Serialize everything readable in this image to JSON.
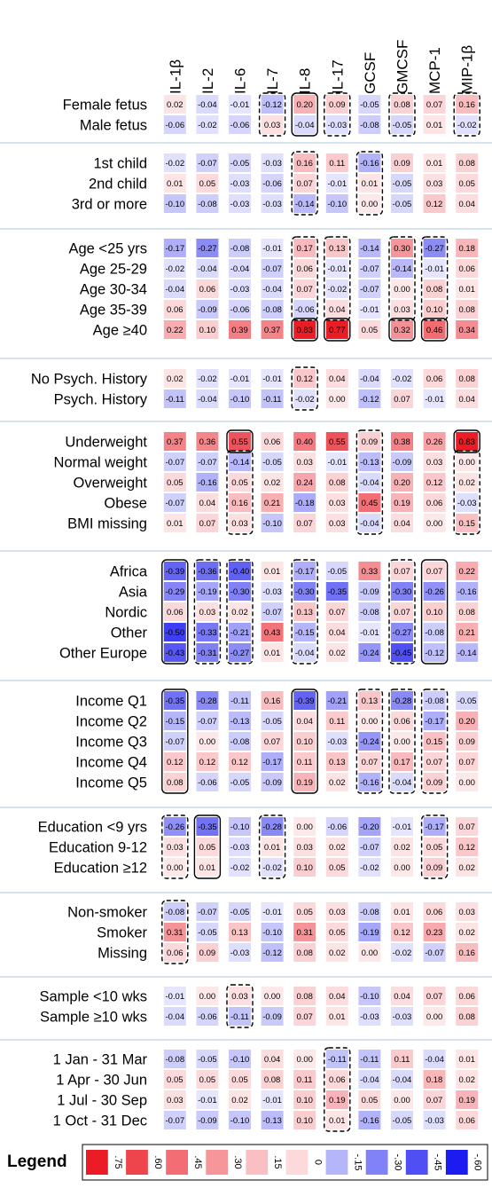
{
  "chart_data": {
    "type": "heatmap",
    "columns": [
      "IL-1β",
      "IL-2",
      "IL-6",
      "IL-7",
      "IL-8",
      "IL-17",
      "GCSF",
      "GMCSF",
      "MCP-1",
      "MIP-1β"
    ],
    "groups": [
      {
        "rows": [
          {
            "label": "Female fetus",
            "values": [
              "0.02",
              "-0.04",
              "-0.01",
              "-0.12",
              "0.20",
              "0.09",
              "-0.05",
              "0.08",
              "0.07",
              "0.16"
            ]
          },
          {
            "label": "Male fetus",
            "values": [
              "-0.06",
              "-0.02",
              "-0.06",
              "0.03",
              "-0.04",
              "-0.03",
              "-0.08",
              "-0.05",
              "0.01",
              "-0.02"
            ]
          }
        ],
        "dashed_boxes": [
          {
            "col": 3,
            "from": 0,
            "to": 1
          },
          {
            "col": 5,
            "from": 0,
            "to": 1
          },
          {
            "col": 7,
            "from": 0,
            "to": 1
          },
          {
            "col": 9,
            "from": 0,
            "to": 1
          }
        ],
        "solid_boxes": [
          {
            "col": 4,
            "from": 0,
            "to": 1
          }
        ]
      },
      {
        "rows": [
          {
            "label": "1st child",
            "values": [
              "-0.02",
              "-0.07",
              "-0.05",
              "-0.03",
              "0.16",
              "0.11",
              "-0.16",
              "0.09",
              "0.01",
              "0.08"
            ]
          },
          {
            "label": "2nd child",
            "values": [
              "0.01",
              "0.05",
              "-0.03",
              "-0.06",
              "0.07",
              "-0.01",
              "0.01",
              "-0.05",
              "0.03",
              "0.05"
            ]
          },
          {
            "label": "3rd or more",
            "values": [
              "-0.10",
              "-0.08",
              "-0.03",
              "-0.03",
              "-0.14",
              "-0.10",
              "0.00",
              "-0.05",
              "0.12",
              "0.04"
            ]
          }
        ],
        "dashed_boxes": [
          {
            "col": 4,
            "from": 0,
            "to": 2
          },
          {
            "col": 6,
            "from": 0,
            "to": 2
          }
        ],
        "solid_boxes": []
      },
      {
        "rows": [
          {
            "label": "Age <25 yrs",
            "values": [
              "-0.17",
              "-0.27",
              "-0.08",
              "-0.01",
              "0.17",
              "0.13",
              "-0.14",
              "0.30",
              "-0.27",
              "0.18"
            ]
          },
          {
            "label": "Age 25-29",
            "values": [
              "-0.02",
              "-0.04",
              "-0.04",
              "-0.07",
              "0.06",
              "-0.01",
              "-0.07",
              "-0.14",
              "-0.01",
              "0.06"
            ]
          },
          {
            "label": "Age 30-34",
            "values": [
              "-0.04",
              "0.06",
              "-0.03",
              "-0.04",
              "0.07",
              "-0.02",
              "-0.07",
              "0.00",
              "0.08",
              "0.01"
            ]
          },
          {
            "label": "Age 35-39",
            "values": [
              "0.06",
              "-0.09",
              "-0.06",
              "-0.08",
              "-0.06",
              "0.04",
              "-0.01",
              "0.03",
              "0.10",
              "0.08"
            ]
          },
          {
            "label": "Age ≥40",
            "values": [
              "0.22",
              "0.10",
              "0.39",
              "0.37",
              "0.83",
              "0.77",
              "0.05",
              "0.32",
              "0.46",
              "0.34"
            ]
          }
        ],
        "dashed_boxes": [
          {
            "col": 4,
            "from": 0,
            "to": 3
          },
          {
            "col": 5,
            "from": 0,
            "to": 3
          },
          {
            "col": 7,
            "from": 0,
            "to": 3
          },
          {
            "col": 8,
            "from": 0,
            "to": 3
          }
        ],
        "solid_boxes": [
          {
            "col": 4,
            "from": 4,
            "to": 4
          },
          {
            "col": 5,
            "from": 4,
            "to": 4
          },
          {
            "col": 7,
            "from": 4,
            "to": 4
          },
          {
            "col": 8,
            "from": 4,
            "to": 4
          }
        ]
      },
      {
        "rows": [
          {
            "label": "No Psych. History",
            "values": [
              "0.02",
              "-0.02",
              "-0.01",
              "-0.01",
              "0.12",
              "0.04",
              "-0.04",
              "-0.02",
              "0.06",
              "0.08"
            ]
          },
          {
            "label": "Psych. History",
            "values": [
              "-0.11",
              "-0.04",
              "-0.10",
              "-0.11",
              "-0.02",
              "0.00",
              "-0.12",
              "0.07",
              "-0.01",
              "0.04"
            ]
          }
        ],
        "dashed_boxes": [
          {
            "col": 4,
            "from": 0,
            "to": 1
          }
        ],
        "solid_boxes": []
      },
      {
        "rows": [
          {
            "label": "Underweight",
            "values": [
              "0.37",
              "0.36",
              "0.55",
              "0.06",
              "0.40",
              "0.55",
              "0.09",
              "0.38",
              "0.26",
              "0.83"
            ]
          },
          {
            "label": "Normal weight",
            "values": [
              "-0.07",
              "-0.07",
              "-0.14",
              "-0.05",
              "0.03",
              "-0.01",
              "-0.13",
              "-0.09",
              "0.03",
              "0.00"
            ]
          },
          {
            "label": "Overweight",
            "values": [
              "0.05",
              "-0.16",
              "0.05",
              "0.02",
              "0.24",
              "0.08",
              "-0.04",
              "0.20",
              "0.12",
              "0.02"
            ]
          },
          {
            "label": "Obese",
            "values": [
              "-0.07",
              "0.04",
              "0.16",
              "0.21",
              "-0.18",
              "0.03",
              "0.45",
              "0.19",
              "0.06",
              "-0.03"
            ]
          },
          {
            "label": "BMI missing",
            "values": [
              "0.01",
              "0.07",
              "0.03",
              "-0.10",
              "0.07",
              "0.03",
              "-0.04",
              "0.04",
              "0.00",
              "0.15"
            ]
          }
        ],
        "dashed_boxes": [
          {
            "col": 2,
            "from": 1,
            "to": 4
          },
          {
            "col": 6,
            "from": 0,
            "to": 4
          },
          {
            "col": 9,
            "from": 1,
            "to": 4
          }
        ],
        "solid_boxes": [
          {
            "col": 2,
            "from": 0,
            "to": 0
          },
          {
            "col": 9,
            "from": 0,
            "to": 0
          }
        ]
      },
      {
        "rows": [
          {
            "label": "Africa",
            "values": [
              "-0.39",
              "-0.36",
              "-0.40",
              "0.01",
              "-0.17",
              "-0.05",
              "0.33",
              "0.07",
              "0.07",
              "0.22"
            ]
          },
          {
            "label": "Asia",
            "values": [
              "-0.29",
              "-0.19",
              "-0.30",
              "-0.03",
              "-0.30",
              "-0.35",
              "-0.09",
              "-0.30",
              "-0.26",
              "-0.16"
            ]
          },
          {
            "label": "Nordic",
            "values": [
              "0.06",
              "0.03",
              "0.02",
              "-0.07",
              "0.13",
              "0.07",
              "-0.08",
              "0.07",
              "0.10",
              "0.08"
            ]
          },
          {
            "label": "Other",
            "values": [
              "-0.50",
              "-0.33",
              "-0.21",
              "0.43",
              "-0.15",
              "0.04",
              "-0.01",
              "-0.27",
              "-0.08",
              "0.21"
            ]
          },
          {
            "label": "Other Europe",
            "values": [
              "-0.43",
              "-0.31",
              "-0.27",
              "0.01",
              "-0.04",
              "0.02",
              "-0.24",
              "-0.45",
              "-0.12",
              "-0.14"
            ]
          }
        ],
        "dashed_boxes": [
          {
            "col": 1,
            "from": 0,
            "to": 4
          },
          {
            "col": 2,
            "from": 0,
            "to": 4
          },
          {
            "col": 4,
            "from": 0,
            "to": 4
          },
          {
            "col": 7,
            "from": 0,
            "to": 4
          }
        ],
        "solid_boxes": [
          {
            "col": 0,
            "from": 0,
            "to": 4
          },
          {
            "col": 8,
            "from": 0,
            "to": 4
          }
        ]
      },
      {
        "rows": [
          {
            "label": "Income Q1",
            "values": [
              "-0.35",
              "-0.28",
              "-0.11",
              "0.16",
              "-0.39",
              "-0.21",
              "0.13",
              "-0.28",
              "-0.08",
              "-0.05"
            ]
          },
          {
            "label": "Income Q2",
            "values": [
              "-0.15",
              "-0.07",
              "-0.13",
              "-0.05",
              "0.04",
              "0.11",
              "0.00",
              "0.06",
              "-0.17",
              "0.20"
            ]
          },
          {
            "label": "Income Q3",
            "values": [
              "-0.07",
              "0.00",
              "-0.08",
              "0.07",
              "0.10",
              "-0.03",
              "-0.24",
              "0.00",
              "0.15",
              "0.09"
            ]
          },
          {
            "label": "Income Q4",
            "values": [
              "0.12",
              "0.12",
              "0.12",
              "-0.17",
              "0.11",
              "0.13",
              "0.07",
              "0.17",
              "0.07",
              "0.07"
            ]
          },
          {
            "label": "Income Q5",
            "values": [
              "0.08",
              "-0.06",
              "-0.05",
              "-0.09",
              "0.19",
              "0.02",
              "-0.16",
              "-0.04",
              "0.09",
              "0.00"
            ]
          }
        ],
        "dashed_boxes": [
          {
            "col": 6,
            "from": 0,
            "to": 4
          },
          {
            "col": 7,
            "from": 0,
            "to": 4
          },
          {
            "col": 8,
            "from": 0,
            "to": 4
          }
        ],
        "solid_boxes": [
          {
            "col": 0,
            "from": 0,
            "to": 4
          },
          {
            "col": 4,
            "from": 0,
            "to": 4
          }
        ]
      },
      {
        "rows": [
          {
            "label": "Education <9 yrs",
            "values": [
              "-0.26",
              "-0.35",
              "-0.10",
              "-0.28",
              "0.00",
              "-0.06",
              "-0.20",
              "-0.01",
              "-0.17",
              "0.07"
            ]
          },
          {
            "label": "Education 9-12",
            "values": [
              "0.03",
              "0.05",
              "-0.03",
              "0.01",
              "0.03",
              "0.02",
              "-0.07",
              "0.02",
              "0.05",
              "0.12"
            ]
          },
          {
            "label": "Education ≥12",
            "values": [
              "0.00",
              "0.01",
              "-0.02",
              "-0.02",
              "0.10",
              "0.05",
              "-0.02",
              "0.00",
              "0.09",
              "0.02"
            ]
          }
        ],
        "dashed_boxes": [
          {
            "col": 0,
            "from": 0,
            "to": 2
          },
          {
            "col": 3,
            "from": 0,
            "to": 2
          },
          {
            "col": 8,
            "from": 0,
            "to": 2
          }
        ],
        "solid_boxes": [
          {
            "col": 1,
            "from": 0,
            "to": 2
          }
        ]
      },
      {
        "rows": [
          {
            "label": "Non-smoker",
            "values": [
              "-0.08",
              "-0.07",
              "-0.05",
              "-0.01",
              "0.05",
              "0.03",
              "-0.08",
              "0.01",
              "0.06",
              "0.03"
            ]
          },
          {
            "label": "Smoker",
            "values": [
              "0.31",
              "-0.05",
              "0.13",
              "-0.10",
              "0.31",
              "0.05",
              "-0.19",
              "0.12",
              "0.23",
              "0.02"
            ]
          },
          {
            "label": "Missing",
            "values": [
              "0.06",
              "0.09",
              "-0.03",
              "-0.12",
              "0.08",
              "0.02",
              "0.00",
              "-0.02",
              "-0.07",
              "0.16"
            ]
          }
        ],
        "dashed_boxes": [
          {
            "col": 0,
            "from": 0,
            "to": 2
          }
        ],
        "solid_boxes": []
      },
      {
        "rows": [
          {
            "label": "Sample <10 wks",
            "values": [
              "-0.01",
              "0.00",
              "0.03",
              "0.00",
              "0.08",
              "0.04",
              "-0.10",
              "0.04",
              "0.07",
              "0.06"
            ]
          },
          {
            "label": "Sample ≥10 wks",
            "values": [
              "-0.04",
              "-0.06",
              "-0.11",
              "-0.09",
              "0.07",
              "0.01",
              "-0.03",
              "-0.03",
              "0.00",
              "0.08"
            ]
          }
        ],
        "dashed_boxes": [
          {
            "col": 2,
            "from": 0,
            "to": 1
          }
        ],
        "solid_boxes": []
      },
      {
        "rows": [
          {
            "label": "1 Jan - 31 Mar",
            "values": [
              "-0.08",
              "-0.05",
              "-0.10",
              "0.04",
              "0.00",
              "-0.11",
              "-0.11",
              "0.11",
              "-0.04",
              "0.01"
            ]
          },
          {
            "label": "1 Apr - 30 Jun",
            "values": [
              "0.05",
              "0.05",
              "0.05",
              "0.08",
              "0.11",
              "0.06",
              "-0.04",
              "-0.04",
              "0.18",
              "0.02"
            ]
          },
          {
            "label": "1 Jul - 30 Sep",
            "values": [
              "0.03",
              "-0.01",
              "0.02",
              "-0.01",
              "0.10",
              "0.19",
              "0.05",
              "0.00",
              "0.07",
              "0.19"
            ]
          },
          {
            "label": "1 Oct - 31 Dec",
            "values": [
              "-0.07",
              "-0.09",
              "-0.10",
              "-0.13",
              "0.10",
              "0.01",
              "-0.16",
              "-0.05",
              "-0.03",
              "0.06"
            ]
          }
        ],
        "dashed_boxes": [
          {
            "col": 5,
            "from": 0,
            "to": 3
          }
        ],
        "solid_boxes": []
      }
    ],
    "color_scale": {
      "min": -0.6,
      "max": 0.75,
      "positive_color": "#e8000b",
      "negative_color": "#0000ee",
      "neutral_color": "#ffffff"
    },
    "legend": {
      "title": "Legend",
      "ticks": [
        ".75",
        ".60",
        ".45",
        ".30",
        ".15",
        "0",
        "-.15",
        "-.30",
        "-.45",
        "-.60"
      ],
      "tick_values": [
        0.75,
        0.6,
        0.45,
        0.3,
        0.15,
        0,
        -0.15,
        -0.3,
        -0.45,
        -0.6
      ],
      "swatch_values": [
        0.75,
        0.6,
        0.45,
        0.3,
        0.15,
        0.05,
        -0.15,
        -0.3,
        -0.45,
        -0.6
      ],
      "placement": "bottom"
    }
  }
}
